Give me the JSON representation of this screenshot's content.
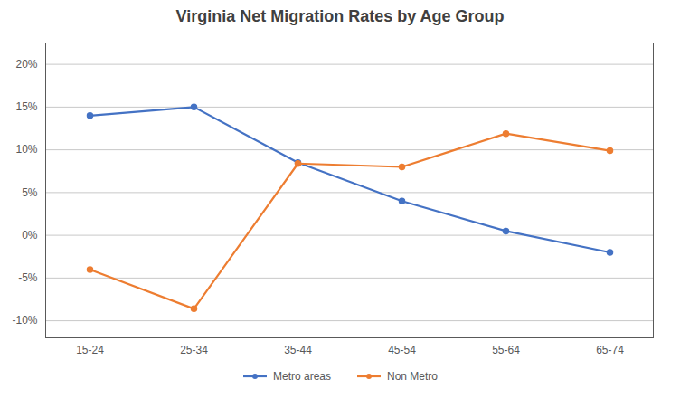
{
  "chart_data": {
    "type": "line",
    "title": "Virginia Net Migration Rates by Age Group",
    "categories": [
      "15-24",
      "25-34",
      "35-44",
      "45-54",
      "55-64",
      "65-74"
    ],
    "series": [
      {
        "name": "Metro areas",
        "color": "#4472C4",
        "values": [
          0.14,
          0.15,
          0.085,
          0.04,
          0.005,
          -0.02
        ]
      },
      {
        "name": "Non Metro",
        "color": "#ED7D31",
        "values": [
          -0.04,
          -0.086,
          0.084,
          0.08,
          0.119,
          0.099
        ]
      }
    ],
    "ylim": [
      -0.12,
      0.225
    ],
    "yticks": [
      {
        "value": -0.1,
        "label": "-10%"
      },
      {
        "value": -0.05,
        "label": "-5%"
      },
      {
        "value": 0.0,
        "label": "0%"
      },
      {
        "value": 0.05,
        "label": "5%"
      },
      {
        "value": 0.1,
        "label": "10%"
      },
      {
        "value": 0.15,
        "label": "15%"
      },
      {
        "value": 0.2,
        "label": "20%"
      }
    ],
    "grid": true,
    "legend": "bottom",
    "marker": "circle"
  }
}
